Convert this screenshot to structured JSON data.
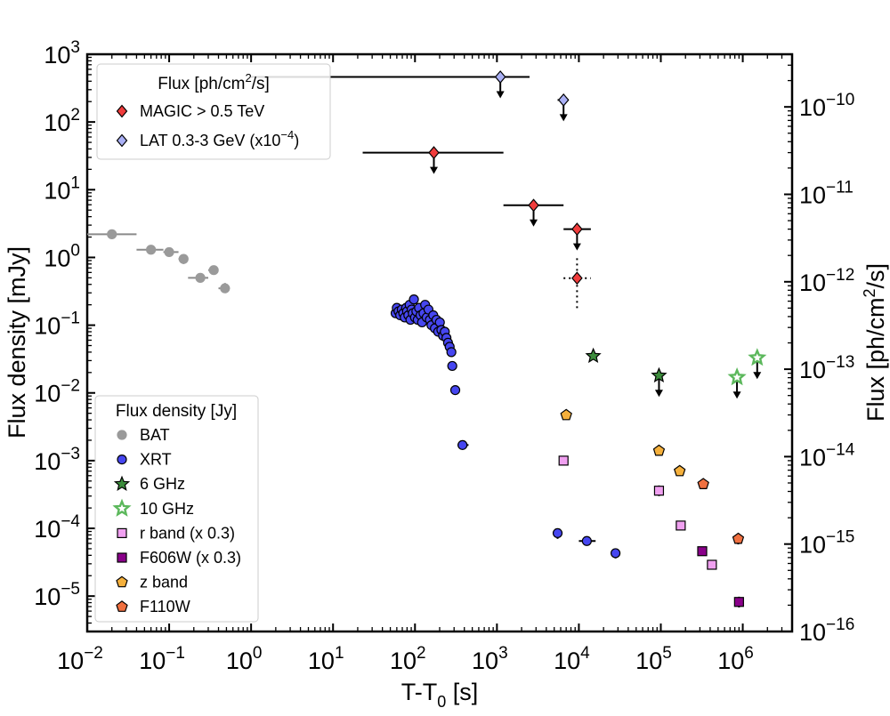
{
  "chart_data": {
    "type": "scatter",
    "x_scale": "log",
    "y_scale": "log",
    "xlim": [
      0.01,
      4000000
    ],
    "ylim": [
      3e-06,
      1000
    ],
    "y2lim": [
      1e-16,
      4e-10
    ],
    "xlabel": {
      "main": "T-T",
      "sub": "0",
      "tail": " [s]"
    },
    "ylabel": "Flux density [mJy]",
    "y2label": {
      "pre": "Flux [ph/cm",
      "sup": "2",
      "post": "/s]"
    },
    "x_ticks": [
      {
        "value": 0.01,
        "base": "10",
        "exp": "−2"
      },
      {
        "value": 0.1,
        "base": "10",
        "exp": "−1"
      },
      {
        "value": 1,
        "base": "10",
        "exp": "0"
      },
      {
        "value": 10,
        "base": "10",
        "exp": "1"
      },
      {
        "value": 100,
        "base": "10",
        "exp": "2"
      },
      {
        "value": 1000,
        "base": "10",
        "exp": "3"
      },
      {
        "value": 10000,
        "base": "10",
        "exp": "4"
      },
      {
        "value": 100000,
        "base": "10",
        "exp": "5"
      },
      {
        "value": 1000000,
        "base": "10",
        "exp": "6"
      }
    ],
    "y_ticks": [
      {
        "value": 1e-05,
        "base": "10",
        "exp": "−5"
      },
      {
        "value": 0.0001,
        "base": "10",
        "exp": "−4"
      },
      {
        "value": 0.001,
        "base": "10",
        "exp": "−3"
      },
      {
        "value": 0.01,
        "base": "10",
        "exp": "−2"
      },
      {
        "value": 0.1,
        "base": "10",
        "exp": "−1"
      },
      {
        "value": 1,
        "base": "10",
        "exp": "0"
      },
      {
        "value": 10,
        "base": "10",
        "exp": "1"
      },
      {
        "value": 100,
        "base": "10",
        "exp": "2"
      },
      {
        "value": 1000,
        "base": "10",
        "exp": "3"
      }
    ],
    "y2_ticks": [
      {
        "value": 1e-16,
        "base": "10",
        "exp": "−16"
      },
      {
        "value": 1e-15,
        "base": "10",
        "exp": "−15"
      },
      {
        "value": 1e-14,
        "base": "10",
        "exp": "−14"
      },
      {
        "value": 1e-13,
        "base": "10",
        "exp": "−13"
      },
      {
        "value": 1e-12,
        "base": "10",
        "exp": "−12"
      },
      {
        "value": 1e-11,
        "base": "10",
        "exp": "−11"
      },
      {
        "value": 1e-10,
        "base": "10",
        "exp": "−10"
      }
    ],
    "legend_flux": {
      "title": {
        "pre": "Flux [ph/cm",
        "sup": "2",
        "post": "/s]"
      },
      "location": "top-left",
      "entries": [
        {
          "label": "MAGIC > 0.5 TeV",
          "marker": "diamond",
          "color": "#f03c3c"
        },
        {
          "label_pre": "LAT 0.3-3 GeV (x10",
          "label_sup": "−4",
          "label_post": ")",
          "marker": "diamond",
          "color": "#aab0f5"
        }
      ]
    },
    "legend_density": {
      "title": "Flux density [Jy]",
      "location": "bottom-left",
      "entries": [
        {
          "label": "BAT",
          "marker": "circle",
          "color": "#9a9a9a",
          "edge": "#9a9a9a"
        },
        {
          "label": "XRT",
          "marker": "circle",
          "color": "#4646f0",
          "edge": "#000000"
        },
        {
          "label": "6 GHz",
          "marker": "star",
          "color": "#3c8c3c",
          "edge": "#000000"
        },
        {
          "label": "10 GHz",
          "marker": "star-open",
          "color": "#ffffff",
          "edge": "#5cb85c"
        },
        {
          "label": "r band (x 0.3)",
          "marker": "square",
          "color": "#f0a0f0",
          "edge": "#000000"
        },
        {
          "label": "F606W (x 0.3)",
          "marker": "square",
          "color": "#8a008a",
          "edge": "#000000"
        },
        {
          "label": "z band",
          "marker": "pentagon",
          "color": "#f5b03c",
          "edge": "#000000"
        },
        {
          "label": "F110W",
          "marker": "pentagon",
          "color": "#f07040",
          "edge": "#000000"
        }
      ]
    },
    "series": [
      {
        "name": "BAT",
        "axis": "left",
        "marker": "circle",
        "color": "#9a9a9a",
        "edge": "#9a9a9a",
        "points": [
          {
            "x": 0.02,
            "y": 2.2,
            "xlo": 0.01,
            "xhi": 0.04
          },
          {
            "x": 0.06,
            "y": 1.3,
            "xlo": 0.04,
            "xhi": 0.085
          },
          {
            "x": 0.1,
            "y": 1.2,
            "xlo": 0.085,
            "xhi": 0.13
          },
          {
            "x": 0.15,
            "y": 0.95,
            "xlo": 0.13,
            "xhi": 0.17,
            "ylo": 0.8,
            "yhi": 1.1
          },
          {
            "x": 0.24,
            "y": 0.5,
            "xlo": 0.17,
            "xhi": 0.3
          },
          {
            "x": 0.35,
            "y": 0.65,
            "xlo": 0.3,
            "xhi": 0.4
          },
          {
            "x": 0.48,
            "y": 0.35,
            "xlo": 0.4,
            "xhi": 0.55,
            "ylo": 0.3,
            "yhi": 0.42
          }
        ]
      },
      {
        "name": "XRT",
        "axis": "left",
        "marker": "circle",
        "color": "#4646f0",
        "edge": "#000000",
        "points": [
          {
            "x": 58,
            "y": 0.15
          },
          {
            "x": 60,
            "y": 0.18
          },
          {
            "x": 63,
            "y": 0.16
          },
          {
            "x": 66,
            "y": 0.14
          },
          {
            "x": 69,
            "y": 0.17
          },
          {
            "x": 72,
            "y": 0.15
          },
          {
            "x": 75,
            "y": 0.13
          },
          {
            "x": 78,
            "y": 0.18
          },
          {
            "x": 80,
            "y": 0.16
          },
          {
            "x": 83,
            "y": 0.14
          },
          {
            "x": 86,
            "y": 0.2
          },
          {
            "x": 88,
            "y": 0.12
          },
          {
            "x": 91,
            "y": 0.17
          },
          {
            "x": 94,
            "y": 0.15
          },
          {
            "x": 97,
            "y": 0.24
          },
          {
            "x": 100,
            "y": 0.13
          },
          {
            "x": 104,
            "y": 0.16
          },
          {
            "x": 108,
            "y": 0.12
          },
          {
            "x": 112,
            "y": 0.18
          },
          {
            "x": 117,
            "y": 0.14
          },
          {
            "x": 122,
            "y": 0.11
          },
          {
            "x": 127,
            "y": 0.15
          },
          {
            "x": 133,
            "y": 0.2
          },
          {
            "x": 139,
            "y": 0.13
          },
          {
            "x": 146,
            "y": 0.17
          },
          {
            "x": 152,
            "y": 0.12
          },
          {
            "x": 159,
            "y": 0.1
          },
          {
            "x": 167,
            "y": 0.14
          },
          {
            "x": 175,
            "y": 0.09
          },
          {
            "x": 183,
            "y": 0.12
          },
          {
            "x": 192,
            "y": 0.08
          },
          {
            "x": 201,
            "y": 0.11
          },
          {
            "x": 210,
            "y": 0.085
          },
          {
            "x": 220,
            "y": 0.07
          },
          {
            "x": 231,
            "y": 0.08
          },
          {
            "x": 242,
            "y": 0.065
          },
          {
            "x": 253,
            "y": 0.055
          },
          {
            "x": 265,
            "y": 0.048
          },
          {
            "x": 278,
            "y": 0.04
          },
          {
            "x": 285,
            "y": 0.025,
            "ylo": 0.022,
            "yhi": 0.029
          },
          {
            "x": 310,
            "y": 0.011,
            "ylo": 0.0095,
            "yhi": 0.013
          },
          {
            "x": 380,
            "y": 0.0017,
            "xlo": 330,
            "xhi": 450
          },
          {
            "x": 5500,
            "y": 8.5e-05,
            "ylo": 7e-05,
            "yhi": 0.0001
          },
          {
            "x": 12500,
            "y": 6.5e-05,
            "xlo": 10000,
            "xhi": 16000
          },
          {
            "x": 28000,
            "y": 4.3e-05,
            "ylo": 3.6e-05,
            "yhi": 5e-05
          }
        ]
      },
      {
        "name": "6 GHz",
        "axis": "left",
        "marker": "star",
        "color": "#3c8c3c",
        "edge": "#000000",
        "points": [
          {
            "x": 15000,
            "y": 0.035
          },
          {
            "x": 95000,
            "y": 0.018,
            "upper_limit": true
          }
        ]
      },
      {
        "name": "10 GHz",
        "axis": "left",
        "marker": "star-open",
        "color": "#ffffff",
        "edge": "#5cb85c",
        "points": [
          {
            "x": 850000,
            "y": 0.017,
            "upper_limit": true
          },
          {
            "x": 1500000,
            "y": 0.033,
            "upper_limit": true
          }
        ]
      },
      {
        "name": "r band (x 0.3)",
        "axis": "left",
        "marker": "square",
        "color": "#f0a0f0",
        "edge": "#000000",
        "points": [
          {
            "x": 6500,
            "y": 0.001
          },
          {
            "x": 95000,
            "y": 0.00036,
            "ylo": 0.0003,
            "yhi": 0.00043
          },
          {
            "x": 175000,
            "y": 0.00011
          },
          {
            "x": 420000,
            "y": 2.9e-05,
            "ylo": 2.5e-05,
            "yhi": 3.3e-05
          }
        ]
      },
      {
        "name": "F606W (x 0.3)",
        "axis": "left",
        "marker": "square",
        "color": "#8a008a",
        "edge": "#000000",
        "points": [
          {
            "x": 320000,
            "y": 4.6e-05
          },
          {
            "x": 900000,
            "y": 8.2e-06,
            "ylo": 6.8e-06,
            "yhi": 9.8e-06
          }
        ]
      },
      {
        "name": "z band",
        "axis": "left",
        "marker": "pentagon",
        "color": "#f5b03c",
        "edge": "#000000",
        "points": [
          {
            "x": 7000,
            "y": 0.0047
          },
          {
            "x": 95000,
            "y": 0.0014,
            "ylo": 0.0012,
            "yhi": 0.0017
          },
          {
            "x": 170000,
            "y": 0.0007
          }
        ]
      },
      {
        "name": "F110W",
        "axis": "left",
        "marker": "pentagon",
        "color": "#f07040",
        "edge": "#000000",
        "points": [
          {
            "x": 330000,
            "y": 0.00045
          },
          {
            "x": 880000,
            "y": 7e-05,
            "ylo": 5.8e-05,
            "yhi": 8.5e-05
          }
        ]
      },
      {
        "name": "MAGIC > 0.5 TeV",
        "axis": "right",
        "marker": "diamond",
        "color": "#f03c3c",
        "edge": "#000000",
        "points": [
          {
            "x": 170,
            "y": 3e-11,
            "xlo": 23,
            "xhi": 1200,
            "upper_limit": true
          },
          {
            "x": 2800,
            "y": 7.5e-12,
            "xlo": 1200,
            "xhi": 6500,
            "upper_limit": true
          },
          {
            "x": 9500,
            "y": 4e-12,
            "xlo": 6500,
            "xhi": 14000,
            "upper_limit": true
          },
          {
            "x": 9500,
            "y": 1.1e-12,
            "xlo": 6500,
            "xhi": 14000,
            "ylo": 5e-13,
            "yhi": 2e-12,
            "dotted": true
          }
        ]
      },
      {
        "name": "LAT 0.3-3 GeV (x10^-4)",
        "axis": "right",
        "marker": "diamond",
        "color": "#aab0f5",
        "edge": "#000000",
        "points": [
          {
            "x": 1100,
            "y": 2.2e-10,
            "xlo": 1,
            "xhi": 2500,
            "upper_limit": true
          },
          {
            "x": 6500,
            "y": 1.2e-10,
            "xlo": 5500,
            "xhi": 7500,
            "upper_limit": true
          }
        ]
      }
    ]
  }
}
